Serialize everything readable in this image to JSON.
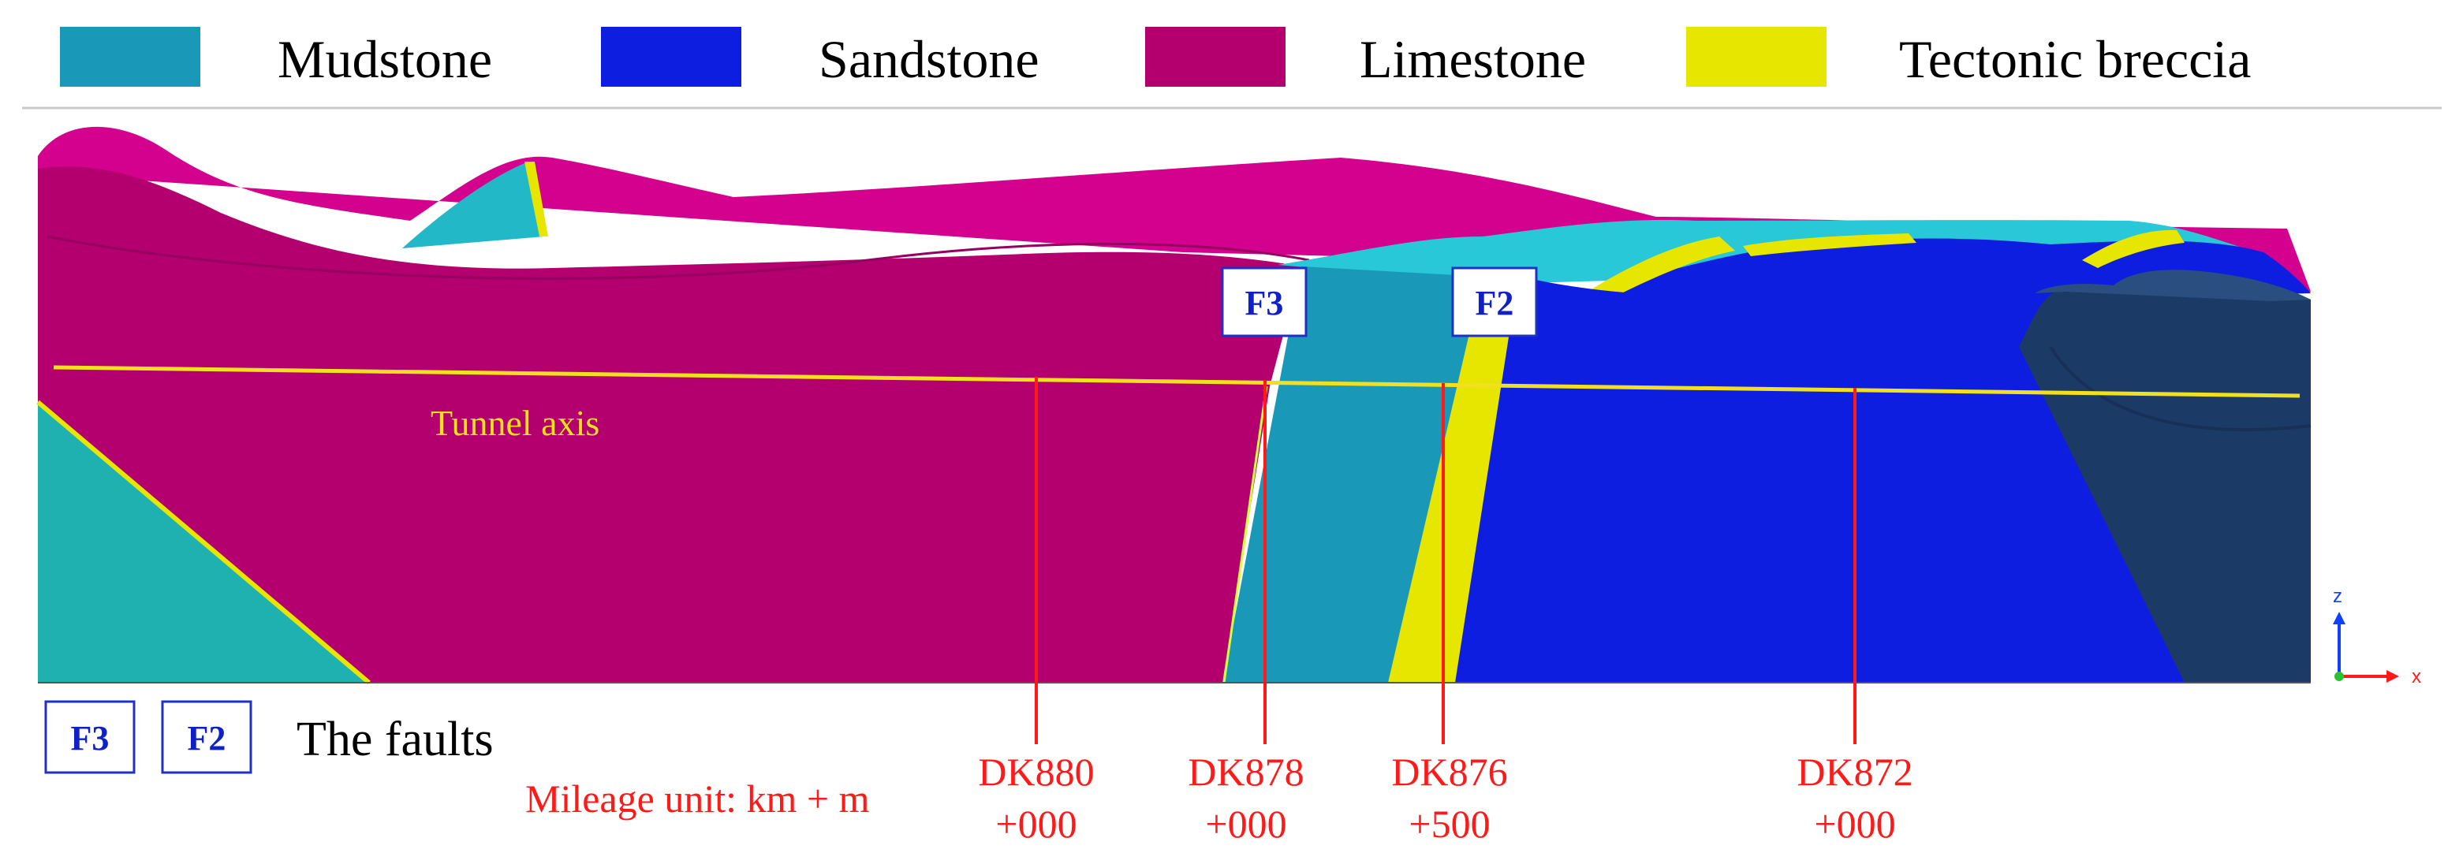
{
  "legend": {
    "items": [
      {
        "label": "Mudstone",
        "color": "#1a98b8"
      },
      {
        "label": "Sandstone",
        "color": "#0d1ee0"
      },
      {
        "label": "Limestone",
        "color": "#b3006e"
      },
      {
        "label": "Tectonic breccia",
        "color": "#e6e600"
      }
    ]
  },
  "faults": {
    "f3": "F3",
    "f2": "F2",
    "caption": "The faults"
  },
  "tunnel_axis": {
    "label": "Tunnel axis",
    "color": "#f0e020"
  },
  "mileage": {
    "unit_label": "Mileage unit: km + m",
    "markers": [
      {
        "line1": "DK880",
        "line2": "+000"
      },
      {
        "line1": "DK878",
        "line2": "+000"
      },
      {
        "line1": "DK876",
        "line2": "+500"
      },
      {
        "line1": "DK872",
        "line2": "+000"
      }
    ]
  },
  "coordinate_axes": {
    "z": "z",
    "x": "x"
  },
  "colors": {
    "limestone_top": "#d4008e",
    "mudstone_light": "#22b8c8",
    "mudstone_top": "#28c8d8",
    "sandstone_dark": "#1c3a66",
    "marker_line": "#ff1a1a"
  }
}
